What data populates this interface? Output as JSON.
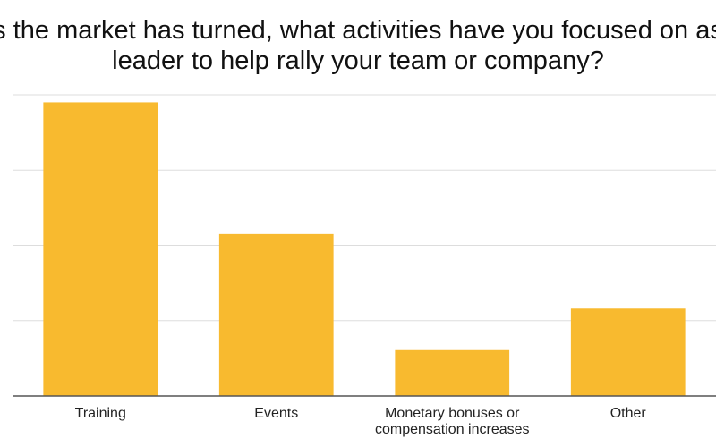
{
  "chart_data": {
    "type": "bar",
    "title_lines": [
      "s the market has turned, what activities have you focused on as",
      "leader to help rally your team or company?"
    ],
    "categories": [
      [
        "Training"
      ],
      [
        "Events"
      ],
      [
        "Monetary bonuses or",
        "compensation increases"
      ],
      [
        "Other"
      ]
    ],
    "values": [
      39,
      21.5,
      6.2,
      11.6
    ],
    "ylim": [
      0,
      40
    ],
    "grid": true,
    "legend": "none",
    "bar_color": "#F8BA2F",
    "grid_color": "#DDDDDD",
    "axis_color": "#555555"
  }
}
